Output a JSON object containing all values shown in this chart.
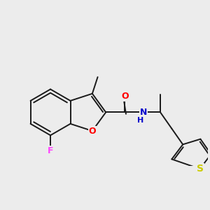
{
  "bg_color": "#ececec",
  "bond_color": "#1a1a1a",
  "bond_width": 1.4,
  "atom_colors": {
    "O": "#ff0000",
    "N": "#0000cc",
    "F": "#ff44ff",
    "S": "#cccc00",
    "C": "#1a1a1a"
  },
  "font_size": 8.5,
  "figsize": [
    3.0,
    3.0
  ],
  "dpi": 100
}
